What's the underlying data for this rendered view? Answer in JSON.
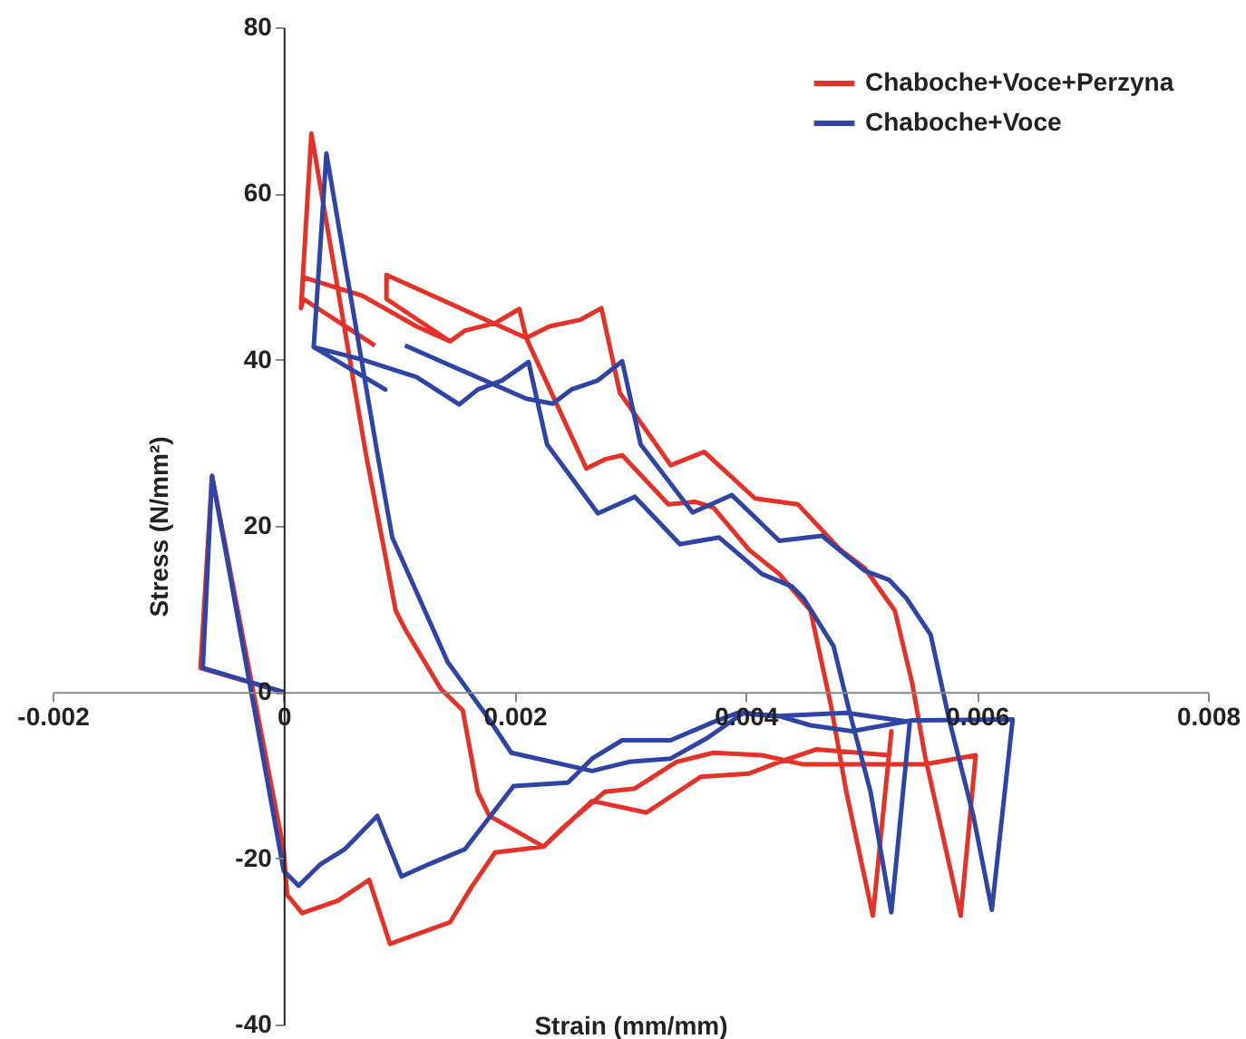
{
  "chart_data": {
    "type": "line",
    "xlabel": "Strain (mm/mm)",
    "ylabel": "Stress (N/mm²)",
    "xlim": [
      -0.002,
      0.008
    ],
    "xticks": [
      -0.002,
      0,
      0.002,
      0.004,
      0.006,
      0.008
    ],
    "ylim": [
      -40,
      80
    ],
    "yticks": [
      -40,
      -20,
      0,
      20,
      40,
      60,
      80
    ],
    "grid": false,
    "legend": "top right",
    "marker": "none",
    "line_style": "solid",
    "series": [
      {
        "name": "Chaboche+Voce+Perzyna",
        "color": "#e53228",
        "x": [
          0.00079,
          0.00017,
          0.00015,
          0.00024,
          0.00071,
          0.00097,
          0.00105,
          0.00136,
          0.00155,
          0.00168,
          0.00178,
          0.00225,
          0.00241,
          0.00278,
          0.00304,
          0.0034,
          0.00372,
          0.00414,
          0.0045,
          0.00482,
          0.00555,
          0.00599,
          0.00586,
          0.00555,
          0.00544,
          0.00529,
          0.00503,
          0.00482,
          0.00445,
          0.00408,
          0.00364,
          0.00335,
          0.00291,
          0.00275,
          0.00257,
          0.0023,
          0.0021,
          0.00204,
          0.00183,
          0.00157,
          0.00144,
          0.00115,
          0.00068,
          0.00017,
          0.00015,
          0.00017,
          0.00068,
          0.00115,
          0.00144,
          0.00089,
          0.00089,
          0.0021,
          0.00262,
          0.00278,
          0.00293,
          0.00333,
          0.00356,
          0.00372,
          0.00403,
          0.00429,
          0.00456,
          0.00474,
          0.00487,
          0.0051,
          0.00526,
          0.00524,
          0.00461,
          0.00429,
          0.00403,
          0.00361,
          0.00314,
          0.00267,
          0.00225,
          0.00183,
          0.00162,
          0.00144,
          0.00092,
          0.00074,
          0.00047,
          0.00016,
          3e-05,
          0,
          -0.00062,
          -0.00072,
          0
        ],
        "values": [
          41.7,
          47.3,
          46.2,
          67.2,
          28.8,
          9.8,
          7.6,
          0.4,
          -2.2,
          -12,
          -14.9,
          -18.6,
          -16.4,
          -12,
          -11.6,
          -8.4,
          -7.3,
          -7.6,
          -8.7,
          -8.7,
          -8.7,
          -7.6,
          -26.9,
          -7.6,
          1.1,
          9.8,
          14.9,
          17.1,
          22.6,
          23.3,
          28.9,
          27.3,
          36,
          46.2,
          44.8,
          44,
          42.6,
          46.1,
          44.4,
          43.5,
          42.2,
          44,
          47.7,
          49.9,
          46.2,
          49.9,
          47.7,
          44,
          42.2,
          47.3,
          50.2,
          42.6,
          26.9,
          28,
          28.5,
          22.6,
          22.9,
          22.2,
          17.1,
          14.2,
          9.8,
          -1.8,
          -12,
          -26.9,
          -4.7,
          -7.6,
          -6.9,
          -8.4,
          -9.8,
          -10.2,
          -14.5,
          -13.1,
          -18.6,
          -19.3,
          -23.6,
          -27.7,
          -30.3,
          -22.6,
          -25.1,
          -26.6,
          -24.4,
          -19,
          26,
          2.9,
          0
        ]
      },
      {
        "name": "Chaboche+Voce",
        "color": "#2f45a5",
        "x": [
          0.00105,
          0.0021,
          0.00233,
          0.00249,
          0.00272,
          0.00293,
          0.00309,
          0.00354,
          0.00388,
          0.00429,
          0.00466,
          0.00503,
          0.00524,
          0.00539,
          0.0056,
          0.00576,
          0.00597,
          0.00613,
          0.00631,
          0.00544,
          0.00492,
          0.00456,
          0.00429,
          0.00398,
          0.00367,
          0.00335,
          0.00299,
          0.00267,
          0.00197,
          0.00178,
          0.00142,
          0.00094,
          0.00081,
          0.00037,
          0.00026,
          0.00088,
          0.00026,
          0.00068,
          0.00115,
          0.00152,
          0.00168,
          0.00189,
          0.00212,
          0.00228,
          0.00272,
          0.00304,
          0.00343,
          0.00377,
          0.00414,
          0.0044,
          0.0045,
          0.00476,
          0.0049,
          0.00508,
          0.00526,
          0.00542,
          0.00487,
          0.00424,
          0.00393,
          0.00372,
          0.00335,
          0.00293,
          0.00267,
          0.00246,
          0.00199,
          0.00157,
          0.00126,
          0.00102,
          0.00081,
          0.00053,
          0.00032,
          0.00013,
          0,
          -0.00062,
          -0.0007,
          0
        ],
        "values": [
          41.7,
          35.3,
          34.7,
          36.4,
          37.5,
          39.8,
          29.8,
          21.6,
          23.7,
          18.2,
          18.8,
          14.6,
          13.5,
          11.3,
          6.9,
          -3.3,
          -14.9,
          -26.2,
          -3.3,
          -3.4,
          -4.7,
          -4,
          -2.9,
          -2.5,
          -5.5,
          -8,
          -8.4,
          -9.5,
          -7.3,
          -3.3,
          3.6,
          18.6,
          28.8,
          64.8,
          41.5,
          36.4,
          41.5,
          40,
          37.9,
          34.6,
          36.4,
          37.5,
          39.7,
          29.8,
          21.5,
          23.5,
          17.8,
          18.6,
          14.2,
          12.7,
          11.3,
          5.5,
          -2.5,
          -12,
          -26.5,
          -3.6,
          -2.5,
          -2.9,
          -2.5,
          -3.6,
          -5.8,
          -5.8,
          -8,
          -10.9,
          -11.3,
          -18.9,
          -20.7,
          -22.2,
          -14.9,
          -18.9,
          -20.7,
          -23.3,
          -21.5,
          26,
          2.9,
          0
        ]
      }
    ]
  }
}
